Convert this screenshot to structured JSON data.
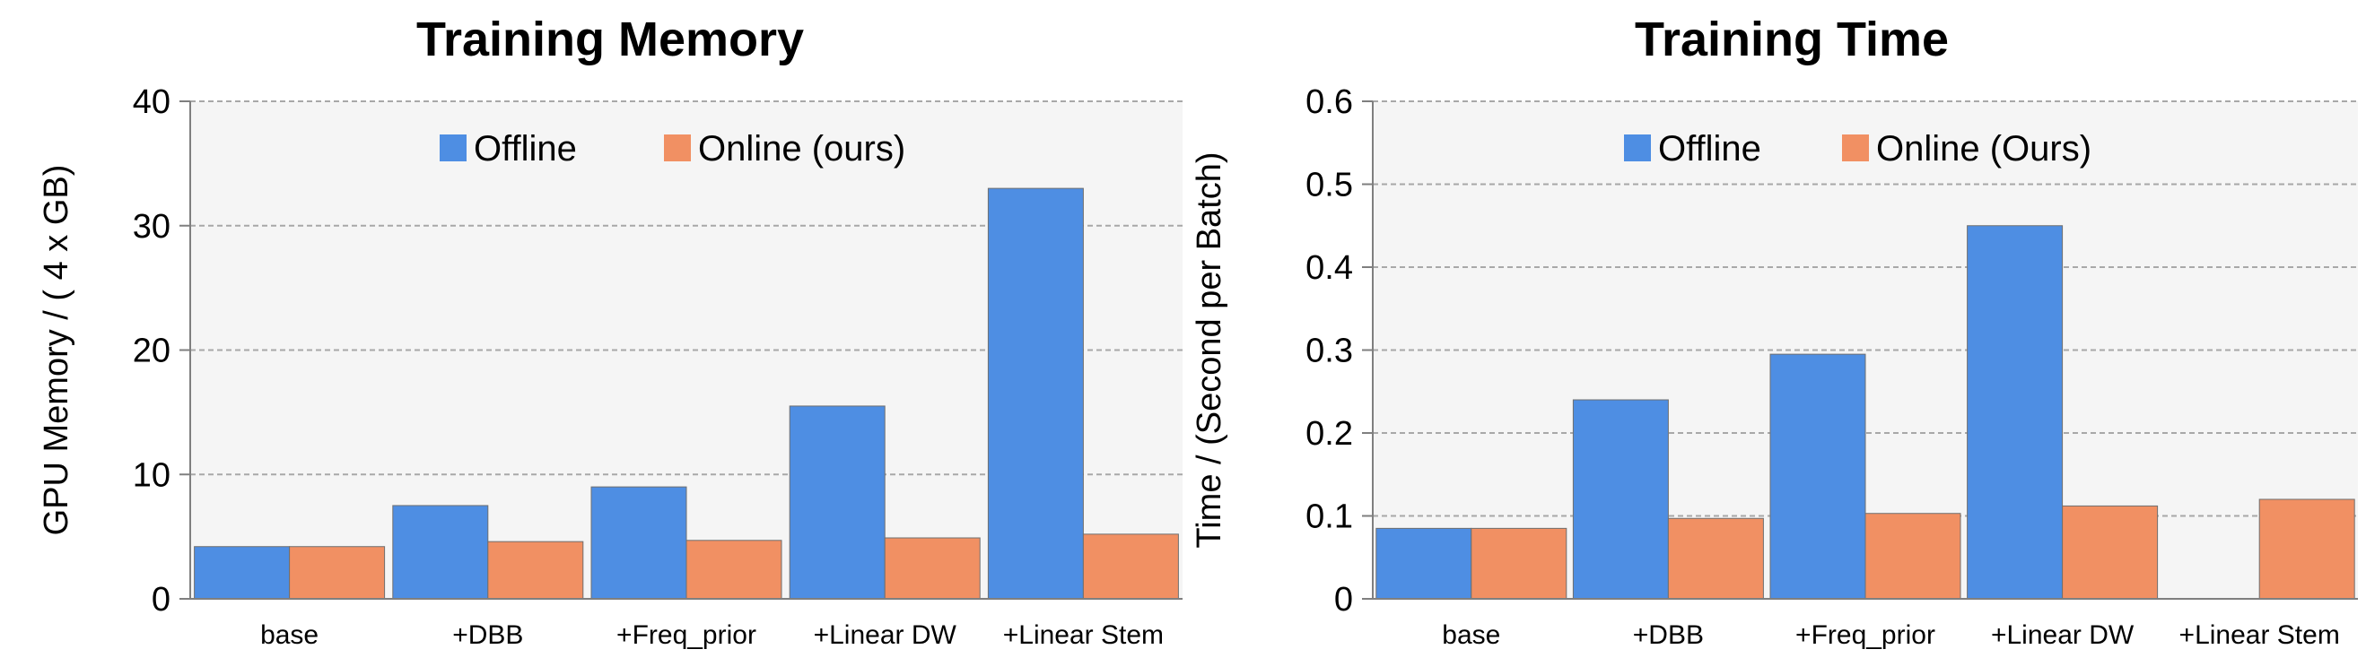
{
  "colors": {
    "offline": "#4E8EE3",
    "online": "#F19063",
    "plot_bg": "#F5F5F5",
    "grid": "#A8A8A8"
  },
  "chart_data": [
    {
      "type": "bar",
      "title": "Training Memory",
      "ylabel": "GPU Memory / ( 4 x GB)",
      "xlabel": "",
      "categories": [
        "base",
        "+DBB",
        "+Freq_prior",
        "+Linear DW",
        "+Linear Stem"
      ],
      "series": [
        {
          "name": "Offline",
          "values": [
            4.2,
            7.5,
            9.0,
            15.5,
            33.0
          ]
        },
        {
          "name": "Online (ours)",
          "values": [
            4.2,
            4.6,
            4.7,
            4.9,
            5.2
          ]
        }
      ],
      "ylim": [
        0,
        40
      ],
      "yticks": [
        "0",
        "10",
        "20",
        "30",
        "40"
      ],
      "ytick_values": [
        0,
        10,
        20,
        30,
        40
      ],
      "grid": true,
      "legend": "top"
    },
    {
      "type": "bar",
      "title": "Training Time",
      "ylabel": "Time / (Second per Batch)",
      "xlabel": "",
      "categories": [
        "base",
        "+DBB",
        "+Freq_prior",
        "+Linear DW",
        "+Linear Stem"
      ],
      "series": [
        {
          "name": "Offline",
          "values": [
            0.085,
            0.24,
            0.295,
            0.45,
            null
          ]
        },
        {
          "name": "Online (Ours)",
          "values": [
            0.085,
            0.097,
            0.103,
            0.112,
            0.12
          ]
        }
      ],
      "ylim": [
        0,
        0.6
      ],
      "yticks": [
        "0",
        "0.1",
        "0.2",
        "0.3",
        "0.4",
        "0.5",
        "0.6"
      ],
      "ytick_values": [
        0,
        0.1,
        0.2,
        0.3,
        0.4,
        0.5,
        0.6
      ],
      "grid": true,
      "legend": "top"
    }
  ]
}
